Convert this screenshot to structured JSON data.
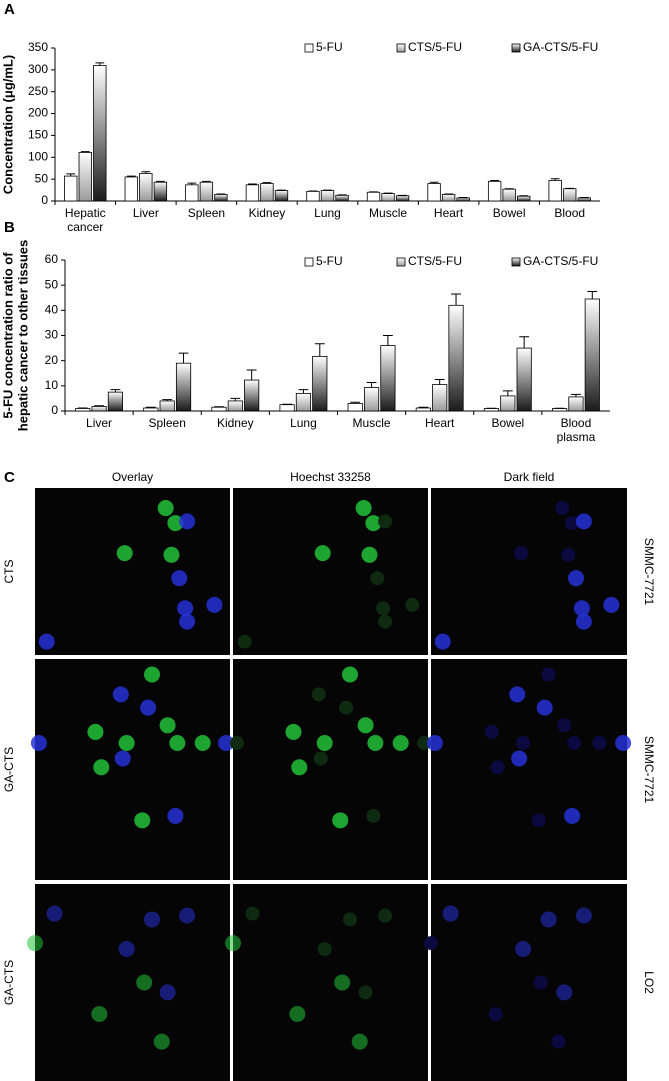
{
  "panels": [
    "A",
    "B",
    "C"
  ],
  "chart_data": [
    {
      "type": "bar",
      "ylabel": "Concentration (μg/mL)",
      "categories": [
        "Hepatic cancer",
        "Liver",
        "Spleen",
        "Kidney",
        "Lung",
        "Muscle",
        "Heart",
        "Bowel",
        "Blood"
      ],
      "series": [
        {
          "name": "5-FU",
          "color": "#ffffff",
          "values": [
            57,
            55,
            37,
            37,
            22,
            20,
            40,
            45,
            47
          ],
          "errors": [
            5,
            2,
            4,
            2,
            1,
            1,
            3,
            2,
            4
          ]
        },
        {
          "name": "CTS/5-FU",
          "color": "#9a9a9a",
          "values": [
            111,
            63,
            43,
            40,
            24,
            17,
            15,
            27,
            28
          ],
          "errors": [
            2,
            4,
            2,
            2,
            1,
            1,
            1,
            1,
            1
          ]
        },
        {
          "name": "GA-CTS/5-FU",
          "color": "#1a1a1a",
          "values": [
            310,
            43,
            15,
            24,
            13,
            12,
            7,
            11,
            7
          ],
          "errors": [
            6,
            2,
            1,
            1,
            1,
            1,
            1,
            1,
            1
          ]
        }
      ],
      "ylim": [
        0,
        350
      ],
      "yticks": [
        0,
        50,
        100,
        150,
        200,
        250,
        300,
        350
      ],
      "legend": "top-right"
    },
    {
      "type": "bar",
      "ylabel": [
        "5-FU concentration ratio of",
        "hepatic cancer to other tissues"
      ],
      "categories": [
        "Liver",
        "Spleen",
        "Kidney",
        "Lung",
        "Muscle",
        "Heart",
        "Bowel",
        "Blood plasma"
      ],
      "series": [
        {
          "name": "5-FU",
          "color": "#ffffff",
          "values": [
            1,
            1.2,
            1.5,
            2.5,
            3,
            1.2,
            1,
            1
          ],
          "errors": [
            0.2,
            0.3,
            0.2,
            0.2,
            0.5,
            0.3,
            0.1,
            0.1
          ]
        },
        {
          "name": "CTS/5-FU",
          "color": "#9a9a9a",
          "values": [
            1.8,
            4,
            4,
            7,
            9.3,
            10.5,
            6,
            5.6
          ],
          "errors": [
            0.3,
            0.5,
            1,
            1.5,
            2,
            2,
            2,
            1
          ]
        },
        {
          "name": "GA-CTS/5-FU",
          "color": "#1a1a1a",
          "values": [
            7.5,
            19,
            12.3,
            21.7,
            26,
            42,
            25,
            44.5
          ],
          "errors": [
            1,
            4,
            4,
            5,
            4,
            4.5,
            4.5,
            3
          ]
        }
      ],
      "ylim": [
        0,
        60
      ],
      "yticks": [
        0,
        10,
        20,
        30,
        40,
        50,
        60
      ],
      "legend": "top-right"
    }
  ],
  "microscopy": {
    "columns": [
      "Overlay",
      "Hoechst 33258",
      "Dark field"
    ],
    "rows": [
      {
        "label": "CTS",
        "cell_line": "SMMC-7721"
      },
      {
        "label": "GA-CTS",
        "cell_line": "SMMC-7721"
      },
      {
        "label": "GA-CTS",
        "cell_line": "LO2"
      }
    ]
  }
}
